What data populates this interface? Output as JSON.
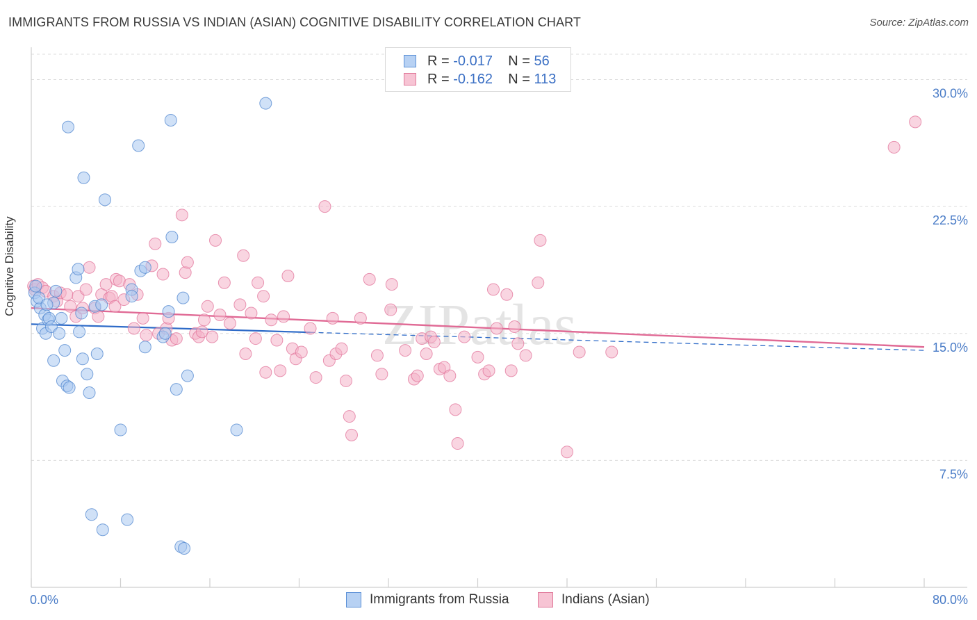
{
  "title": "IMMIGRANTS FROM RUSSIA VS INDIAN (ASIAN) COGNITIVE DISABILITY CORRELATION CHART",
  "source": "Source: ZipAtlas.com",
  "watermark": "ZIPatlas",
  "stats": [
    {
      "r_label": "R =",
      "r": "-0.017",
      "n_label": "N =",
      "n": "56"
    },
    {
      "r_label": "R =",
      "r": "-0.162",
      "n_label": "N =",
      "n": "113"
    }
  ],
  "legend": [
    "Immigrants from Russia",
    "Indians (Asian)"
  ],
  "colors": {
    "blue_fill": "#a9c8f0",
    "blue_stroke": "#4f85cf",
    "blue_line": "#2e6bc8",
    "pink_fill": "#f4b3c8",
    "pink_stroke": "#e2739a",
    "pink_line": "#e06a95",
    "tick": "#4a7cc7"
  },
  "chart_data": {
    "type": "scatter",
    "title": "IMMIGRANTS FROM RUSSIA VS INDIAN (ASIAN) COGNITIVE DISABILITY CORRELATION CHART",
    "xlabel": "",
    "ylabel": "Cognitive Disability",
    "xlim": [
      0,
      80
    ],
    "ylim": [
      0,
      31.5
    ],
    "x_tick_labels": [
      "0.0%",
      "80.0%"
    ],
    "y_ticks": [
      7.5,
      15.0,
      22.5,
      30.0
    ],
    "y_tick_labels": [
      "7.5%",
      "15.0%",
      "22.5%",
      "30.0%"
    ],
    "series": [
      {
        "name": "Immigrants from Russia",
        "points": [
          [
            0.3,
            17.4
          ],
          [
            0.5,
            16.9
          ],
          [
            0.8,
            16.5
          ],
          [
            0.7,
            17.1
          ],
          [
            1.0,
            15.3
          ],
          [
            1.2,
            16.1
          ],
          [
            1.3,
            15.0
          ],
          [
            1.5,
            15.8
          ],
          [
            1.6,
            15.9
          ],
          [
            1.8,
            15.4
          ],
          [
            2.0,
            16.8
          ],
          [
            2.2,
            17.5
          ],
          [
            2.0,
            13.4
          ],
          [
            2.5,
            15.0
          ],
          [
            2.7,
            15.9
          ],
          [
            2.8,
            12.2
          ],
          [
            3.0,
            14.0
          ],
          [
            3.2,
            11.9
          ],
          [
            3.4,
            11.8
          ],
          [
            3.3,
            27.2
          ],
          [
            4.0,
            18.3
          ],
          [
            4.2,
            18.8
          ],
          [
            4.3,
            15.1
          ],
          [
            4.5,
            16.2
          ],
          [
            4.6,
            13.5
          ],
          [
            4.7,
            24.2
          ],
          [
            5.0,
            12.6
          ],
          [
            5.2,
            11.5
          ],
          [
            5.4,
            4.3
          ],
          [
            5.7,
            16.6
          ],
          [
            5.9,
            13.8
          ],
          [
            6.3,
            16.7
          ],
          [
            6.4,
            3.4
          ],
          [
            6.6,
            22.9
          ],
          [
            8.0,
            9.3
          ],
          [
            8.6,
            4.0
          ],
          [
            9.0,
            17.6
          ],
          [
            9.0,
            17.2
          ],
          [
            9.6,
            26.1
          ],
          [
            9.8,
            18.7
          ],
          [
            10.2,
            18.9
          ],
          [
            10.2,
            14.2
          ],
          [
            11.8,
            14.8
          ],
          [
            12.0,
            15.0
          ],
          [
            12.3,
            16.3
          ],
          [
            12.5,
            27.6
          ],
          [
            12.6,
            20.7
          ],
          [
            13.0,
            11.7
          ],
          [
            13.4,
            2.4
          ],
          [
            13.6,
            17.1
          ],
          [
            13.7,
            2.3
          ],
          [
            14.0,
            12.5
          ],
          [
            18.4,
            9.3
          ],
          [
            21.0,
            28.6
          ],
          [
            0.4,
            17.8
          ],
          [
            1.4,
            16.7
          ]
        ]
      },
      {
        "name": "Indians (Asian)",
        "points": [
          [
            0.2,
            17.8
          ],
          [
            0.3,
            17.6
          ],
          [
            0.6,
            17.9
          ],
          [
            1.0,
            17.7
          ],
          [
            1.3,
            17.5
          ],
          [
            2.0,
            17.2
          ],
          [
            2.3,
            16.9
          ],
          [
            2.6,
            17.4
          ],
          [
            3.2,
            17.3
          ],
          [
            3.5,
            16.6
          ],
          [
            4.0,
            16.0
          ],
          [
            4.2,
            17.2
          ],
          [
            4.6,
            16.5
          ],
          [
            4.9,
            17.6
          ],
          [
            5.2,
            18.9
          ],
          [
            5.7,
            16.5
          ],
          [
            6.0,
            16.0
          ],
          [
            6.3,
            17.3
          ],
          [
            6.7,
            17.9
          ],
          [
            7.0,
            17.1
          ],
          [
            7.2,
            17.2
          ],
          [
            7.5,
            16.6
          ],
          [
            7.6,
            18.2
          ],
          [
            7.9,
            18.1
          ],
          [
            8.3,
            17.0
          ],
          [
            8.8,
            17.9
          ],
          [
            9.2,
            15.3
          ],
          [
            9.5,
            17.3
          ],
          [
            10.0,
            15.9
          ],
          [
            10.3,
            14.9
          ],
          [
            10.8,
            19.0
          ],
          [
            11.1,
            20.3
          ],
          [
            11.4,
            15.0
          ],
          [
            11.8,
            18.5
          ],
          [
            12.1,
            15.3
          ],
          [
            12.3,
            15.9
          ],
          [
            12.6,
            14.6
          ],
          [
            13.0,
            14.7
          ],
          [
            13.5,
            22.0
          ],
          [
            13.8,
            18.6
          ],
          [
            14.0,
            19.2
          ],
          [
            14.7,
            15.0
          ],
          [
            15.0,
            14.8
          ],
          [
            15.3,
            15.1
          ],
          [
            15.5,
            15.8
          ],
          [
            15.8,
            16.6
          ],
          [
            16.2,
            14.8
          ],
          [
            16.5,
            20.5
          ],
          [
            16.9,
            16.1
          ],
          [
            17.3,
            18.0
          ],
          [
            17.8,
            15.6
          ],
          [
            18.7,
            16.7
          ],
          [
            19.0,
            19.6
          ],
          [
            19.2,
            13.8
          ],
          [
            19.7,
            16.2
          ],
          [
            20.1,
            14.7
          ],
          [
            20.3,
            18.0
          ],
          [
            20.8,
            17.2
          ],
          [
            21.0,
            12.7
          ],
          [
            21.5,
            15.8
          ],
          [
            22.0,
            14.6
          ],
          [
            22.3,
            12.8
          ],
          [
            22.6,
            16.0
          ],
          [
            23.0,
            18.4
          ],
          [
            23.4,
            14.1
          ],
          [
            23.7,
            13.5
          ],
          [
            24.2,
            13.9
          ],
          [
            25.0,
            15.3
          ],
          [
            25.5,
            12.4
          ],
          [
            26.3,
            22.5
          ],
          [
            26.7,
            13.4
          ],
          [
            27.0,
            15.9
          ],
          [
            27.3,
            13.8
          ],
          [
            27.8,
            14.1
          ],
          [
            28.2,
            12.2
          ],
          [
            28.5,
            10.1
          ],
          [
            28.7,
            9.0
          ],
          [
            29.5,
            15.9
          ],
          [
            30.3,
            18.2
          ],
          [
            31.0,
            13.7
          ],
          [
            31.4,
            12.6
          ],
          [
            32.2,
            16.4
          ],
          [
            32.3,
            17.9
          ],
          [
            33.5,
            14.0
          ],
          [
            34.3,
            12.3
          ],
          [
            34.6,
            12.5
          ],
          [
            35.0,
            14.7
          ],
          [
            35.4,
            13.8
          ],
          [
            35.8,
            14.8
          ],
          [
            36.1,
            14.5
          ],
          [
            36.6,
            12.9
          ],
          [
            37.0,
            13.0
          ],
          [
            37.5,
            12.5
          ],
          [
            38.0,
            10.5
          ],
          [
            38.2,
            8.5
          ],
          [
            38.8,
            14.8
          ],
          [
            40.0,
            13.6
          ],
          [
            40.6,
            12.6
          ],
          [
            41.0,
            12.8
          ],
          [
            41.4,
            17.6
          ],
          [
            41.7,
            15.3
          ],
          [
            42.6,
            17.3
          ],
          [
            43.0,
            12.8
          ],
          [
            43.3,
            15.4
          ],
          [
            43.6,
            14.4
          ],
          [
            44.3,
            13.7
          ],
          [
            45.4,
            18.0
          ],
          [
            45.6,
            20.5
          ],
          [
            48.0,
            8.0
          ],
          [
            49.1,
            13.9
          ],
          [
            52.0,
            13.9
          ],
          [
            77.3,
            26.0
          ],
          [
            79.2,
            27.5
          ]
        ]
      }
    ],
    "trend_lines": [
      {
        "series": "Immigrants from Russia",
        "x": [
          0,
          80
        ],
        "y": [
          15.55,
          14.0
        ],
        "solid_until_x": 25
      },
      {
        "series": "Indians (Asian)",
        "x": [
          0,
          80
        ],
        "y": [
          16.5,
          14.2
        ]
      }
    ]
  }
}
